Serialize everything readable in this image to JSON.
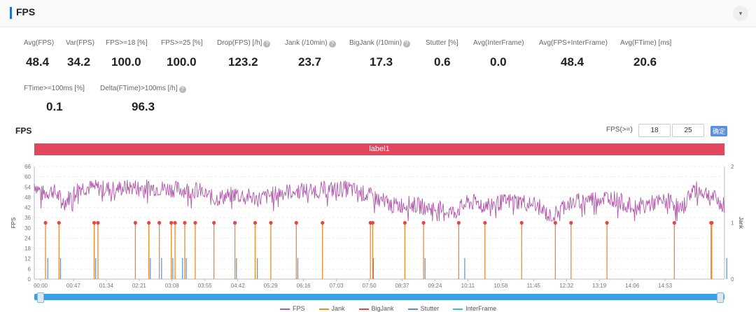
{
  "header": {
    "title": "FPS"
  },
  "colors": {
    "accent": "#1f6fd6",
    "fps": "#b05aa9",
    "jank": "#f08a24",
    "bigjank": "#e0484a",
    "stutter": "#5b8fd0",
    "interframe": "#33c4c4",
    "label_band": "#e4465f"
  },
  "metrics": [
    {
      "label": "Avg(FPS)",
      "value": "48.4",
      "help": false
    },
    {
      "label": "Var(FPS)",
      "value": "34.2",
      "help": false
    },
    {
      "label": "FPS>=18 [%]",
      "value": "100.0",
      "help": false
    },
    {
      "label": "FPS>=25 [%]",
      "value": "100.0",
      "help": false
    },
    {
      "label": "Drop(FPS) [/h]",
      "value": "123.2",
      "help": true
    },
    {
      "label": "Jank (/10min)",
      "value": "23.7",
      "help": true
    },
    {
      "label": "BigJank (/10min)",
      "value": "17.3",
      "help": true
    },
    {
      "label": "Stutter [%]",
      "value": "0.6",
      "help": false
    },
    {
      "label": "Avg(InterFrame)",
      "value": "0.0",
      "help": false
    },
    {
      "label": "Avg(FPS+InterFrame)",
      "value": "48.4",
      "help": false
    },
    {
      "label": "Avg(FTime) [ms]",
      "value": "20.6",
      "help": false
    },
    {
      "label": "FTime>=100ms [%]",
      "value": "0.1",
      "help": false
    },
    {
      "label": "Delta(FTime)>100ms [/h]",
      "value": "96.3",
      "help": true
    }
  ],
  "chart_header": {
    "title": "FPS",
    "threshold_label": "FPS(>=)",
    "threshold_1": "18",
    "threshold_2": "25",
    "apply_label": "确定"
  },
  "chart_data": {
    "type": "line",
    "title": "",
    "band_label": "label1",
    "ylabel": "FPS",
    "y2label": "Jank",
    "ylim": [
      0,
      66
    ],
    "y2lim": [
      0,
      2
    ],
    "y_ticks": [
      "0",
      "6",
      "12",
      "18",
      "24",
      "30",
      "36",
      "42",
      "48",
      "54",
      "60",
      "66"
    ],
    "y2_ticks": [
      "0",
      "1",
      "2"
    ],
    "x_ticks": [
      "00:00",
      "00:47",
      "01:34",
      "02:21",
      "03:08",
      "03:55",
      "04:42",
      "05:29",
      "06:16",
      "07:03",
      "07:50",
      "08:37",
      "09:24",
      "10:11",
      "10:58",
      "11:45",
      "12:32",
      "13:19",
      "14:06",
      "14:53"
    ],
    "x_start_min": 0,
    "x_end_min": 922,
    "fps_series": {
      "name": "FPS",
      "anchors": [
        [
          0,
          56
        ],
        [
          10,
          50
        ],
        [
          25,
          52
        ],
        [
          40,
          45
        ],
        [
          60,
          54
        ],
        [
          100,
          53
        ],
        [
          140,
          54
        ],
        [
          180,
          53
        ],
        [
          220,
          52
        ],
        [
          240,
          47
        ],
        [
          270,
          50
        ],
        [
          300,
          47
        ],
        [
          330,
          51
        ],
        [
          360,
          52
        ],
        [
          420,
          53
        ],
        [
          440,
          50
        ],
        [
          460,
          47
        ],
        [
          480,
          43
        ],
        [
          500,
          44
        ],
        [
          540,
          41
        ],
        [
          560,
          39
        ],
        [
          580,
          45
        ],
        [
          610,
          44
        ],
        [
          640,
          46
        ],
        [
          670,
          44
        ],
        [
          690,
          36
        ],
        [
          710,
          44
        ],
        [
          740,
          47
        ],
        [
          770,
          48
        ],
        [
          800,
          42
        ],
        [
          820,
          44
        ],
        [
          850,
          46
        ],
        [
          865,
          41
        ],
        [
          880,
          53
        ],
        [
          900,
          50
        ],
        [
          922,
          43
        ]
      ]
    },
    "jank_events": [
      15,
      33,
      80,
      85,
      135,
      153,
      167,
      183,
      188,
      201,
      215,
      240,
      268,
      295,
      316,
      350,
      385,
      449,
      452,
      495,
      520,
      567,
      602,
      651,
      696,
      717,
      765,
      855,
      904,
      905
    ],
    "stutter_events": [
      18,
      35,
      82,
      155,
      170,
      185,
      198,
      203,
      270,
      298,
      352,
      453,
      522,
      575,
      925
    ],
    "legend": [
      {
        "name": "FPS",
        "color": "#b05aa9"
      },
      {
        "name": "Jank",
        "color": "#f08a24"
      },
      {
        "name": "BigJank",
        "color": "#e0484a"
      },
      {
        "name": "Stutter",
        "color": "#5b8fd0"
      },
      {
        "name": "InterFrame",
        "color": "#33c4c4"
      }
    ]
  }
}
